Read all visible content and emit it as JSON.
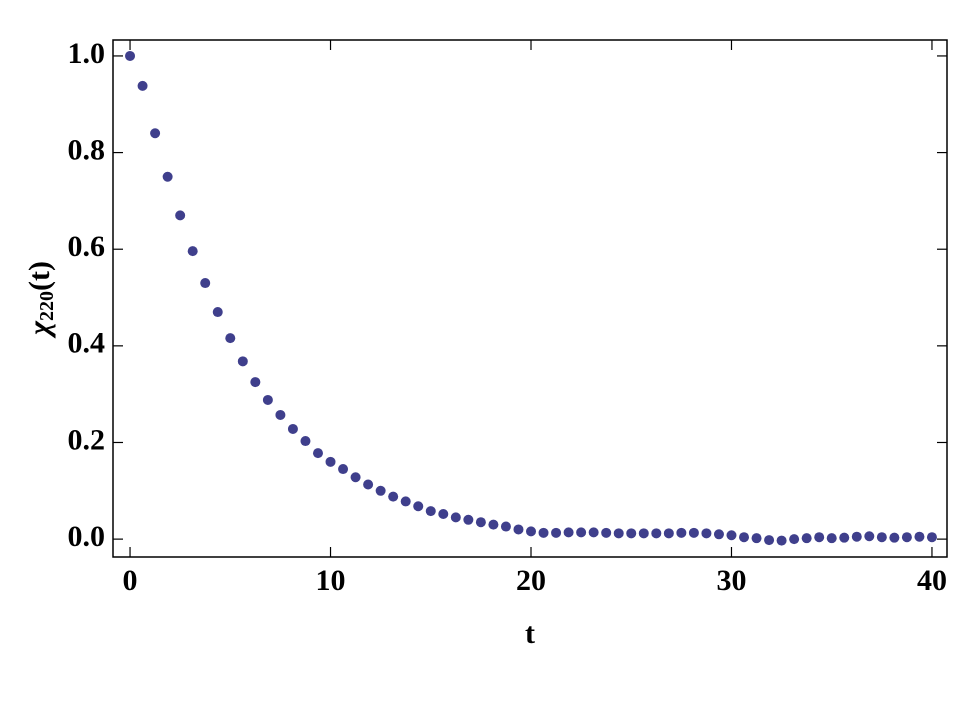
{
  "chart_data": {
    "type": "scatter",
    "xlabel": "t",
    "ylabel": {
      "symbol": "χ",
      "subscript": "220",
      "argument": "(t)"
    },
    "x": [
      0,
      0.625,
      1.25,
      1.875,
      2.5,
      3.125,
      3.75,
      4.375,
      5,
      5.625,
      6.25,
      6.875,
      7.5,
      8.125,
      8.75,
      9.375,
      10,
      10.625,
      11.25,
      11.875,
      12.5,
      13.125,
      13.75,
      14.375,
      15,
      15.625,
      16.25,
      16.875,
      17.5,
      18.125,
      18.75,
      19.375,
      20,
      20.625,
      21.25,
      21.875,
      22.5,
      23.125,
      23.75,
      24.375,
      25,
      25.625,
      26.25,
      26.875,
      27.5,
      28.125,
      28.75,
      29.375,
      30,
      30.625,
      31.25,
      31.875,
      32.5,
      33.125,
      33.75,
      34.375,
      35,
      35.625,
      36.25,
      36.875,
      37.5,
      38.125,
      38.75,
      39.375,
      40
    ],
    "series": [
      {
        "color": "#3f3f8c",
        "values": [
          1.0,
          0.938,
          0.84,
          0.75,
          0.67,
          0.596,
          0.53,
          0.47,
          0.416,
          0.368,
          0.325,
          0.288,
          0.257,
          0.228,
          0.203,
          0.178,
          0.16,
          0.145,
          0.128,
          0.113,
          0.1,
          0.088,
          0.078,
          0.068,
          0.058,
          0.052,
          0.045,
          0.04,
          0.035,
          0.03,
          0.026,
          0.02,
          0.016,
          0.013,
          0.013,
          0.014,
          0.014,
          0.014,
          0.013,
          0.012,
          0.012,
          0.012,
          0.012,
          0.012,
          0.013,
          0.013,
          0.012,
          0.01,
          0.008,
          0.004,
          0.002,
          -0.002,
          -0.003,
          0,
          0.002,
          0.004,
          0.002,
          0.003,
          0.005,
          0.006,
          0.004,
          0.003,
          0.004,
          0.005,
          0.004
        ]
      }
    ],
    "xlim": [
      -0.85,
      40.75
    ],
    "ylim": [
      -0.037,
      1.033
    ],
    "xticks": [
      0,
      10,
      20,
      30,
      40
    ],
    "yticks": [
      {
        "value": 0,
        "label": "0.0"
      },
      0.2,
      0.4,
      0.6,
      0.8,
      {
        "value": 1,
        "label": "1.0"
      }
    ]
  }
}
